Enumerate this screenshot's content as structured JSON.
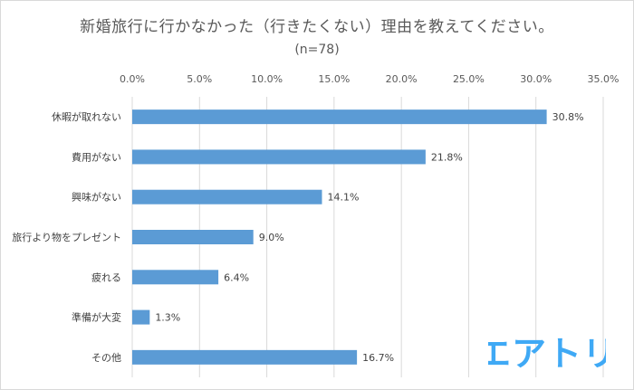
{
  "chart_data": {
    "type": "bar",
    "orientation": "horizontal",
    "title": "新婚旅行に行かなかった（行きたくない）理由を教えてください。",
    "subtitle": "(n=78)",
    "categories": [
      "休暇が取れない",
      "費用がない",
      "興味がない",
      "旅行より物をプレゼント",
      "疲れる",
      "準備が大変",
      "その他"
    ],
    "values": [
      30.8,
      21.8,
      14.1,
      9.0,
      6.4,
      1.3,
      16.7
    ],
    "value_labels": [
      "30.8%",
      "21.8%",
      "14.1%",
      "9.0%",
      "6.4%",
      "1.3%",
      "16.7%"
    ],
    "x_ticks": [
      0,
      5,
      10,
      15,
      20,
      25,
      30,
      35
    ],
    "x_tick_labels": [
      "0.0%",
      "5.0%",
      "10.0%",
      "15.0%",
      "20.0%",
      "25.0%",
      "30.0%",
      "35.0%"
    ],
    "xlim": [
      0,
      35
    ],
    "x_axis_position": "top",
    "grid": true,
    "bar_color": "#5b9bd5",
    "gridline_color": "#d9d9d9"
  },
  "brand": {
    "logo_text": "エアトリ",
    "color": "#3fa9f5"
  }
}
